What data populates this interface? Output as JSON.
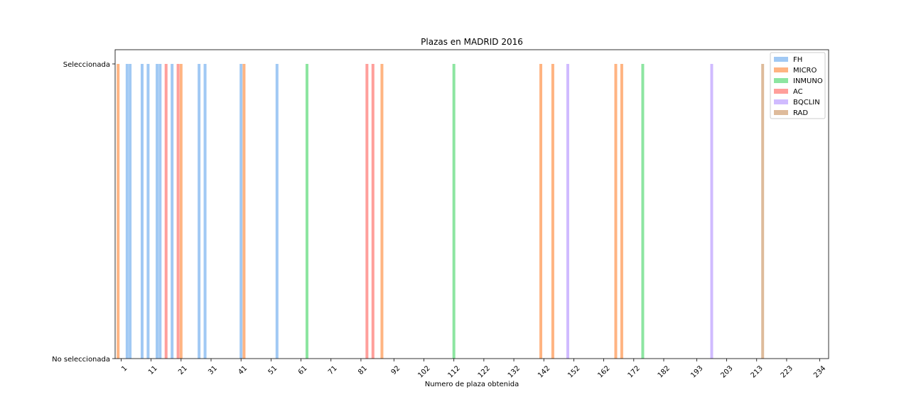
{
  "chart_data": {
    "type": "bar",
    "title": "Plazas en MADRID 2016",
    "xlabel": "Numero de plaza obtenida",
    "ylabel": "",
    "yticks": [
      "No seleccionada",
      "Seleccionada"
    ],
    "ylim": [
      0,
      1
    ],
    "x_positions": [
      1,
      11,
      21,
      31,
      41,
      51,
      61,
      71,
      81,
      92,
      102,
      112,
      122,
      132,
      142,
      152,
      162,
      172,
      182,
      193,
      203,
      213,
      223,
      234
    ],
    "x_labels": [
      "1",
      "11",
      "21",
      "31",
      "41",
      "51",
      "61",
      "71",
      "81",
      "92",
      "102",
      "112",
      "122",
      "132",
      "142",
      "152",
      "162",
      "172",
      "182",
      "193",
      "203",
      "213",
      "223",
      "234"
    ],
    "legend_position": "top-right",
    "grid": false,
    "series": [
      {
        "name": "FH",
        "color": "#a1c9f4",
        "x": [
          3,
          4,
          8,
          10,
          13,
          14,
          18,
          27,
          29,
          41,
          53
        ]
      },
      {
        "name": "MICRO",
        "color": "#ffb482",
        "x": [
          0,
          21,
          42,
          88,
          141,
          145,
          166,
          168
        ]
      },
      {
        "name": "INMUNO",
        "color": "#8de5a1",
        "x": [
          63,
          112,
          175
        ]
      },
      {
        "name": "AC",
        "color": "#ff9f9b",
        "x": [
          16,
          20,
          83,
          85
        ]
      },
      {
        "name": "BQCLIN",
        "color": "#d0bbff",
        "x": [
          150,
          198
        ]
      },
      {
        "name": "RAD",
        "color": "#debb9b",
        "x": [
          215
        ]
      }
    ]
  }
}
